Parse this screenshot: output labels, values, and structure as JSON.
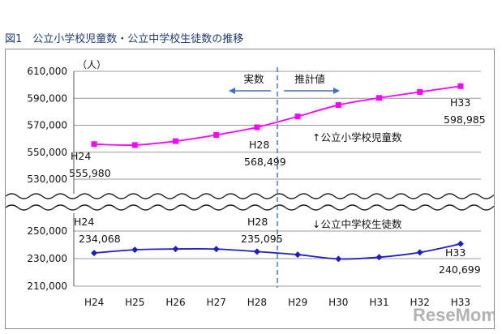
{
  "title": "図1　公立小学校児童数・公立中学校生徒数の推移",
  "watermark": "ReseMom",
  "chart_data": {
    "type": "line",
    "unit": "（人）",
    "categories": [
      "H24",
      "H25",
      "H26",
      "H27",
      "H28",
      "H29",
      "H30",
      "H31",
      "H32",
      "H33"
    ],
    "upper_axis": {
      "ylim": [
        530000,
        610000
      ],
      "ticks": [
        "610,000",
        "590,000",
        "570,000",
        "550,000",
        "530,000"
      ]
    },
    "lower_axis": {
      "ylim": [
        210000,
        250000
      ],
      "ticks": [
        "250,000",
        "230,000",
        "210,000"
      ]
    },
    "divider_after": "H28",
    "divider_labels": {
      "left": "実数",
      "right": "推計値"
    },
    "series": [
      {
        "name": "公立小学校児童数",
        "legend": "↑公立小学校児童数",
        "axis": "upper",
        "color": "#ff00ff",
        "marker": "square",
        "values": [
          555980,
          555300,
          558200,
          562800,
          568499,
          576500,
          585000,
          590300,
          594700,
          598985
        ],
        "labels": [
          {
            "year": "H24",
            "value": "555,980"
          },
          {
            "year": "H28",
            "value": "568,499"
          },
          {
            "year": "H33",
            "value": "598,985"
          }
        ]
      },
      {
        "name": "公立中学校生徒数",
        "legend": "↓公立中学校生徒数",
        "axis": "lower",
        "color": "#1e1ec8",
        "marker": "diamond",
        "values": [
          234068,
          236400,
          237000,
          236900,
          235095,
          232900,
          229800,
          231000,
          234500,
          240699
        ],
        "labels": [
          {
            "year": "H24",
            "value": "234,068"
          },
          {
            "year": "H28",
            "value": "235,095"
          },
          {
            "year": "H33",
            "value": "240,699"
          }
        ]
      }
    ]
  }
}
